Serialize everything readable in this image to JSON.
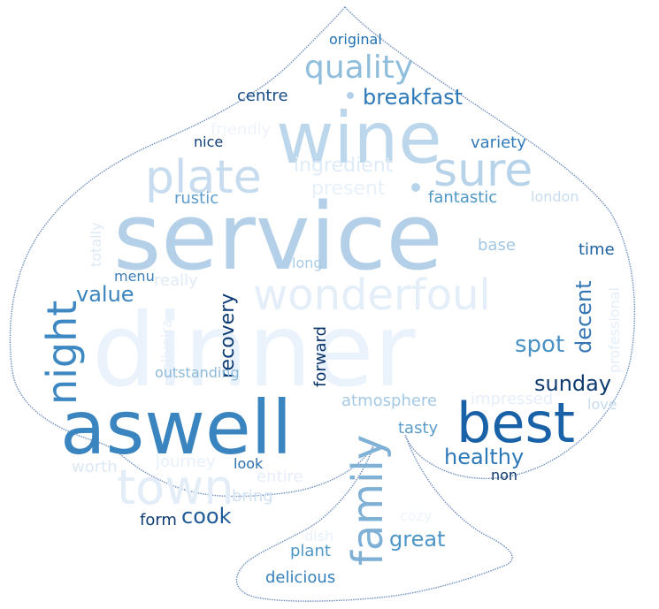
{
  "words": [
    {
      "text": "dinner",
      "color": "#eaf2fb"
    },
    {
      "text": "service",
      "color": "#b3d0e8"
    },
    {
      "text": "wine",
      "color": "#bcd7ec"
    },
    {
      "text": "aswell",
      "color": "#3a85c0"
    },
    {
      "text": "best",
      "color": "#1a62a8"
    },
    {
      "text": "wonderfoul",
      "color": "#e3eef9"
    },
    {
      "text": "town",
      "color": "#e2edf8"
    },
    {
      "text": "plate",
      "color": "#c7dcef"
    },
    {
      "text": "sure",
      "color": "#b7d3ea"
    },
    {
      "text": "family",
      "color": "#7fb0d6"
    },
    {
      "text": "night",
      "color": "#3d88c2"
    },
    {
      "text": "quality",
      "color": "#8fbddc"
    },
    {
      "text": "breakfast",
      "color": "#2d78b9"
    },
    {
      "text": "ingredient",
      "color": "#dfebf7"
    },
    {
      "text": "present",
      "color": "#e8f1fa"
    },
    {
      "text": "fantastic",
      "color": "#4e98c8"
    },
    {
      "text": "variety",
      "color": "#2f7abb"
    },
    {
      "text": "london",
      "color": "#c9dcef"
    },
    {
      "text": "centre",
      "color": "#174d86"
    },
    {
      "text": "original",
      "color": "#2070b3"
    },
    {
      "text": "friendly",
      "color": "#eef4fb"
    },
    {
      "text": "nice",
      "color": "#0f3e78"
    },
    {
      "text": "rustic",
      "color": "#5d9ccc"
    },
    {
      "text": "totally",
      "color": "#dde9f6"
    },
    {
      "text": "value",
      "color": "#3a84c0"
    },
    {
      "text": "menu",
      "color": "#3d7fb6"
    },
    {
      "text": "really",
      "color": "#dfebf6"
    },
    {
      "text": "recovery",
      "color": "#0d3c74"
    },
    {
      "text": "long",
      "color": "#a8cce6"
    },
    {
      "text": "base",
      "color": "#a2c7e3"
    },
    {
      "text": "time",
      "color": "#1c5f9f"
    },
    {
      "text": "decent",
      "color": "#3476b5"
    },
    {
      "text": "spot",
      "color": "#4a92c6"
    },
    {
      "text": "professional",
      "color": "#e3eef9"
    },
    {
      "text": "sunday",
      "color": "#0e3a6e"
    },
    {
      "text": "forward",
      "color": "#0b3467"
    },
    {
      "text": "oliveira",
      "color": "#e6eff9"
    },
    {
      "text": "outstanding",
      "color": "#8dbadb"
    },
    {
      "text": "atmosphere",
      "color": "#a4c8e4"
    },
    {
      "text": "impressed",
      "color": "#e5eef9"
    },
    {
      "text": "love",
      "color": "#c5dbee"
    },
    {
      "text": "tasty",
      "color": "#5a9ccb"
    },
    {
      "text": "healthy",
      "color": "#2d78b9"
    },
    {
      "text": "worth",
      "color": "#dce8f5"
    },
    {
      "text": "journey",
      "color": "#e7f0fa"
    },
    {
      "text": "look",
      "color": "#2a6fae"
    },
    {
      "text": "entire",
      "color": "#e5eef9"
    },
    {
      "text": "non",
      "color": "#0c376d"
    },
    {
      "text": "bring",
      "color": "#cfe1f2"
    },
    {
      "text": "cook",
      "color": "#1c5a98"
    },
    {
      "text": "form",
      "color": "#0e3b72"
    },
    {
      "text": "great",
      "color": "#4c95c7"
    },
    {
      "text": "cozy",
      "color": "#eef4fb"
    },
    {
      "text": "dish",
      "color": "#e8f1fa"
    },
    {
      "text": "plant",
      "color": "#4d96c8"
    },
    {
      "text": "delicious",
      "color": "#3580bd"
    }
  ]
}
